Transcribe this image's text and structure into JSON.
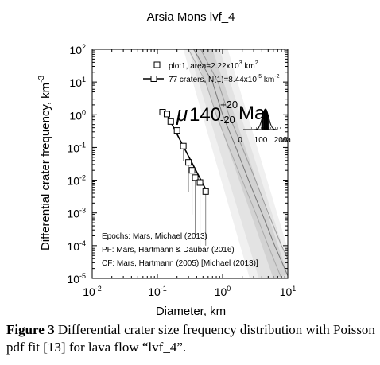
{
  "chart_data": {
    "type": "scatter",
    "title": "Arsia Mons lvf_4",
    "xlabel": "Diameter, km",
    "ylabel": "Differential crater frequency, km",
    "ylabel_sup": "-3",
    "x_scale": "log",
    "y_scale": "log",
    "xlim": [
      0.01,
      10
    ],
    "ylim": [
      1e-05,
      100
    ],
    "x_ticks": [
      {
        "value": 0.01,
        "base": "10",
        "exp": "-2"
      },
      {
        "value": 0.1,
        "base": "10",
        "exp": "-1"
      },
      {
        "value": 1,
        "base": "10",
        "exp": "0"
      },
      {
        "value": 10,
        "base": "10",
        "exp": "1"
      }
    ],
    "y_ticks": [
      {
        "value": 1e-05,
        "base": "10",
        "exp": "-5"
      },
      {
        "value": 0.0001,
        "base": "10",
        "exp": "-4"
      },
      {
        "value": 0.001,
        "base": "10",
        "exp": "-3"
      },
      {
        "value": 0.01,
        "base": "10",
        "exp": "-2"
      },
      {
        "value": 0.1,
        "base": "10",
        "exp": "-1"
      },
      {
        "value": 1,
        "base": "10",
        "exp": "0"
      },
      {
        "value": 10,
        "base": "10",
        "exp": "1"
      },
      {
        "value": 100,
        "base": "10",
        "exp": "2"
      }
    ],
    "legend": {
      "placement": "top-right",
      "entries": [
        {
          "marker": "square",
          "text": "plot1, area=2.22x10",
          "sup": "3",
          "unit": " km",
          "unit_sup": "2"
        },
        {
          "marker": "line-square",
          "text": "77 craters, N(1)=8.44x10",
          "sup": "-5",
          "unit": " km",
          "unit_sup": "-2"
        }
      ]
    },
    "series": [
      {
        "name": "plot1",
        "marker": "square",
        "x": [
          0.12,
          0.14,
          0.16,
          0.2,
          0.25,
          0.3,
          0.34,
          0.38,
          0.45,
          0.55
        ],
        "y": [
          1.2,
          1.05,
          0.62,
          0.33,
          0.11,
          0.035,
          0.02,
          0.012,
          0.0085,
          0.0045
        ]
      }
    ],
    "fit": {
      "x": [
        0.14,
        0.6
      ],
      "y": [
        1.0,
        0.0038
      ]
    },
    "age_label": {
      "mu": "μ",
      "value": "140",
      "plus": "+20",
      "minus": "-20",
      "unit": "Ma"
    },
    "inset": {
      "tick_labels": [
        "0",
        "100",
        "200"
      ],
      "unit": "Ma"
    },
    "notes": [
      "Epochs: Mars, Michael (2013)",
      "PF: Mars, Hartmann & Daubar (2016)",
      "CF: Mars, Hartmann (2005) [Michael (2013)]"
    ]
  },
  "caption": {
    "label": "Figure 3",
    "text": " Differential crater size frequency distribution with Poisson pdf fit [13] for lava flow “lvf_4”."
  }
}
